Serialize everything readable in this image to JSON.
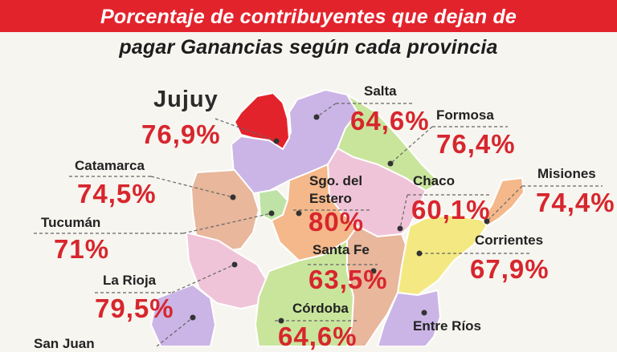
{
  "title": {
    "line1": "Porcentaje de contribuyentes que dejan de",
    "line2": "pagar Ganancias según cada provincia"
  },
  "colors": {
    "header": "#e3232c",
    "percent_text": "#d7262e",
    "highlight": "#e3232c"
  },
  "provinces": [
    {
      "name": "Jujuy",
      "value": "76,9%",
      "highlighted": true
    },
    {
      "name": "Salta",
      "value": "64,6%"
    },
    {
      "name": "Formosa",
      "value": "76,4%"
    },
    {
      "name": "Catamarca",
      "value": "74,5%"
    },
    {
      "name": "Sgo. del Estero",
      "name_lines": [
        "Sgo. del",
        "Estero"
      ],
      "value": "80%"
    },
    {
      "name": "Chaco",
      "value": "60,1%"
    },
    {
      "name": "Misiones",
      "value": "74,4%"
    },
    {
      "name": "Tucumán",
      "value": "71%"
    },
    {
      "name": "Santa Fe",
      "value": "63,5%"
    },
    {
      "name": "Corrientes",
      "value": "67,9%"
    },
    {
      "name": "La Rioja",
      "value": "79,5%"
    },
    {
      "name": "Córdoba",
      "value": "64,6%"
    },
    {
      "name": "Entre Ríos",
      "value": ""
    },
    {
      "name": "San Juan",
      "value": ""
    }
  ]
}
